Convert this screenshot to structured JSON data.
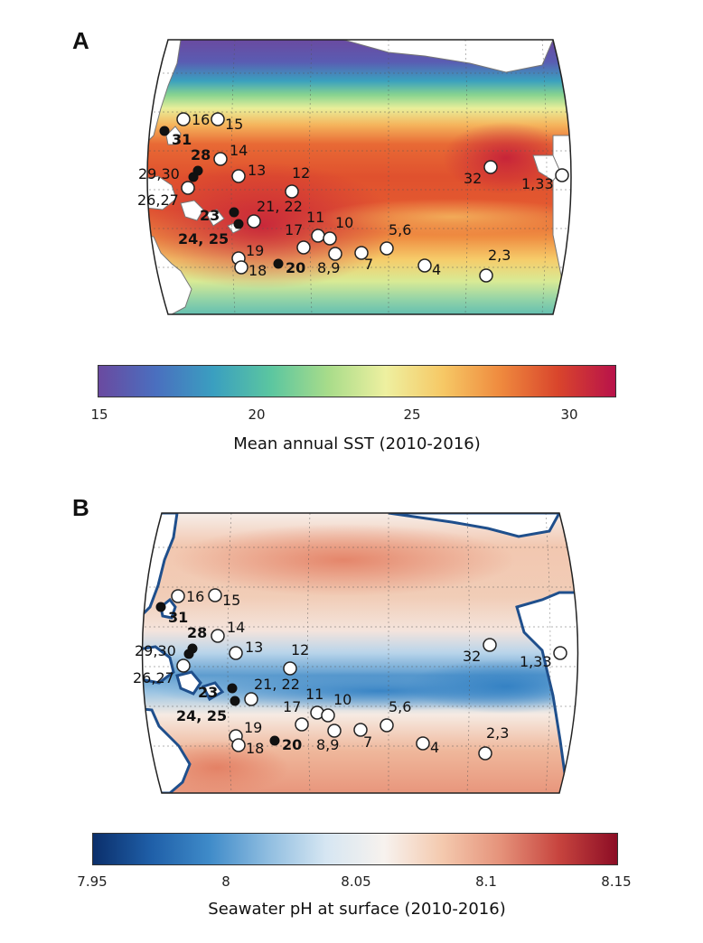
{
  "panels": [
    {
      "letter": "A",
      "colorbar": {
        "title": "Mean annual SST (2010-2016)",
        "ticks": [
          "15",
          "20",
          "25",
          "30"
        ],
        "colors": [
          "#6a4aa0",
          "#4a6fbf",
          "#3a9fc0",
          "#5bc6a0",
          "#a8dc8a",
          "#eef0a0",
          "#f6c865",
          "#ef8a3e",
          "#d9452c",
          "#b8124a"
        ]
      },
      "sites": [
        {
          "label": "16",
          "fill": "open",
          "bold": false
        },
        {
          "label": "15",
          "fill": "open",
          "bold": false
        },
        {
          "label": "31",
          "fill": "filled",
          "bold": true
        },
        {
          "label": "28",
          "fill": "filled",
          "bold": true
        },
        {
          "label": "14",
          "fill": "open",
          "bold": false
        },
        {
          "label": "29,30",
          "fill": "filled",
          "bold": false
        },
        {
          "label": "13",
          "fill": "open",
          "bold": false
        },
        {
          "label": "26,27",
          "fill": "open",
          "bold": false
        },
        {
          "label": "12",
          "fill": "open",
          "bold": false
        },
        {
          "label": "23",
          "fill": "filled",
          "bold": true
        },
        {
          "label": "21, 22",
          "fill": "open",
          "bold": false
        },
        {
          "label": "24, 25",
          "fill": "filled",
          "bold": true
        },
        {
          "label": "11",
          "fill": "open",
          "bold": false
        },
        {
          "label": "10",
          "fill": "open",
          "bold": false
        },
        {
          "label": "17",
          "fill": "open",
          "bold": false
        },
        {
          "label": "5,6",
          "fill": "open",
          "bold": false
        },
        {
          "label": "19",
          "fill": "open",
          "bold": false
        },
        {
          "label": "18",
          "fill": "open",
          "bold": false
        },
        {
          "label": "20",
          "fill": "filled",
          "bold": true
        },
        {
          "label": "8,9",
          "fill": "open",
          "bold": false
        },
        {
          "label": "7",
          "fill": "open",
          "bold": false
        },
        {
          "label": "4",
          "fill": "open",
          "bold": false
        },
        {
          "label": "2,3",
          "fill": "open",
          "bold": false
        },
        {
          "label": "32",
          "fill": "open",
          "bold": false
        },
        {
          "label": "1,33",
          "fill": "open",
          "bold": false
        }
      ]
    },
    {
      "letter": "B",
      "colorbar": {
        "title": "Seawater pH at surface (2010-2016)",
        "ticks": [
          "7.95",
          "8",
          "8.05",
          "8.1",
          "8.15"
        ],
        "colors": [
          "#0b2f6b",
          "#1f5fa8",
          "#3f8bc9",
          "#8fbde0",
          "#d6e6f2",
          "#f7f2ee",
          "#f4c9ae",
          "#e5927a",
          "#c7443e",
          "#8c0d25"
        ]
      }
    }
  ]
}
